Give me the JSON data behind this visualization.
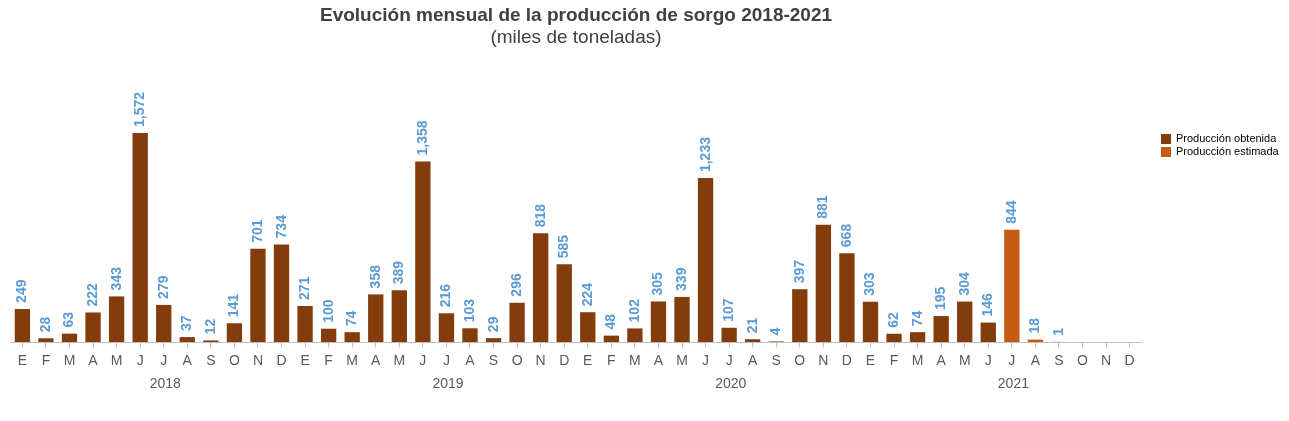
{
  "chart_data": {
    "type": "bar",
    "title": "Evolución mensual de la producción de sorgo 2018-2021",
    "subtitle": "(miles de toneladas)",
    "categories": [
      "E",
      "F",
      "M",
      "A",
      "M",
      "J",
      "J",
      "A",
      "S",
      "O",
      "N",
      "D",
      "E",
      "F",
      "M",
      "A",
      "M",
      "J",
      "J",
      "A",
      "S",
      "O",
      "N",
      "D",
      "E",
      "F",
      "M",
      "A",
      "M",
      "J",
      "J",
      "A",
      "S",
      "O",
      "N",
      "D",
      "E",
      "F",
      "M",
      "A",
      "M",
      "J",
      "J",
      "A",
      "S",
      "O",
      "N",
      "D"
    ],
    "series": [
      {
        "name": "Producción obtenida",
        "color": "#843c0c",
        "values": [
          249,
          28,
          63,
          222,
          343,
          1572,
          279,
          37,
          12,
          141,
          701,
          734,
          271,
          100,
          74,
          358,
          389,
          1358,
          216,
          103,
          29,
          296,
          818,
          585,
          224,
          48,
          102,
          305,
          339,
          1233,
          107,
          21,
          4,
          397,
          881,
          668,
          303,
          62,
          74,
          195,
          304,
          146,
          null,
          null,
          null,
          null,
          null,
          null
        ],
        "value_labels": [
          "249",
          "28",
          "63",
          "222",
          "343",
          "1,572",
          "279",
          "37",
          "12",
          "141",
          "701",
          "734",
          "271",
          "100",
          "74",
          "358",
          "389",
          "1,358",
          "216",
          "103",
          "29",
          "296",
          "818",
          "585",
          "224",
          "48",
          "102",
          "305",
          "339",
          "1,233",
          "107",
          "21",
          "4",
          "397",
          "881",
          "668",
          "303",
          "62",
          "74",
          "195",
          "304",
          "146",
          null,
          null,
          null,
          null,
          null,
          null
        ]
      },
      {
        "name": "Producción estimada",
        "color": "#c55a11",
        "values": [
          null,
          null,
          null,
          null,
          null,
          null,
          null,
          null,
          null,
          null,
          null,
          null,
          null,
          null,
          null,
          null,
          null,
          null,
          null,
          null,
          null,
          null,
          null,
          null,
          null,
          null,
          null,
          null,
          null,
          null,
          null,
          null,
          null,
          null,
          null,
          null,
          null,
          null,
          null,
          null,
          null,
          null,
          844,
          18,
          1,
          null,
          null,
          null
        ],
        "value_labels": [
          null,
          null,
          null,
          null,
          null,
          null,
          null,
          null,
          null,
          null,
          null,
          null,
          null,
          null,
          null,
          null,
          null,
          null,
          null,
          null,
          null,
          null,
          null,
          null,
          null,
          null,
          null,
          null,
          null,
          null,
          null,
          null,
          null,
          null,
          null,
          null,
          null,
          null,
          null,
          null,
          null,
          null,
          "844",
          "18",
          "1",
          null,
          null,
          null
        ]
      }
    ],
    "annotations": [
      "2018",
      "2019",
      "2020",
      "2021"
    ],
    "legend": "right"
  }
}
